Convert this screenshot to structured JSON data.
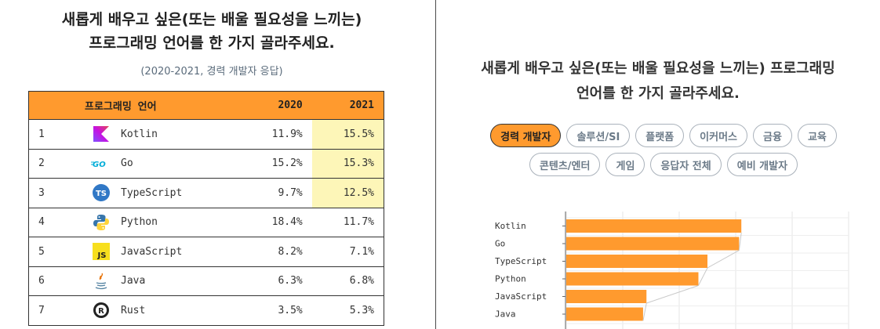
{
  "left_panel": {
    "title_line1": "새롭게 배우고 싶은(또는 배울 필요성을 느끼는)",
    "title_line2": "프로그래밍 언어를 한 가지 골라주세요.",
    "subtitle": "(2020-2021, 경력 개발자 응답)",
    "table": {
      "headers": {
        "rank": "",
        "language": "프로그래밍 언어",
        "y2020": "2020",
        "y2021": "2021"
      },
      "rows": [
        {
          "rank": "1",
          "icon": "kotlin-icon",
          "language": "Kotlin",
          "y2020": "11.9%",
          "y2021": "15.5%",
          "highlight": true
        },
        {
          "rank": "2",
          "icon": "go-icon",
          "language": "Go",
          "y2020": "15.2%",
          "y2021": "15.3%",
          "highlight": true
        },
        {
          "rank": "3",
          "icon": "typescript-icon",
          "language": "TypeScript",
          "y2020": "9.7%",
          "y2021": "12.5%",
          "highlight": true
        },
        {
          "rank": "4",
          "icon": "python-icon",
          "language": "Python",
          "y2020": "18.4%",
          "y2021": "11.7%",
          "highlight": false
        },
        {
          "rank": "5",
          "icon": "javascript-icon",
          "language": "JavaScript",
          "y2020": "8.2%",
          "y2021": "7.1%",
          "highlight": false
        },
        {
          "rank": "6",
          "icon": "java-icon",
          "language": "Java",
          "y2020": "6.3%",
          "y2021": "6.8%",
          "highlight": false
        },
        {
          "rank": "7",
          "icon": "rust-icon",
          "language": "Rust",
          "y2020": "3.5%",
          "y2021": "5.3%",
          "highlight": false
        }
      ]
    }
  },
  "right_panel": {
    "title_line1": "새롭게 배우고 싶은(또는 배울 필요성을 느끼는) 프로그래밍",
    "title_line2": "언어를 한 가지 골라주세요.",
    "filters": [
      {
        "label": "경력 개발자",
        "active": true
      },
      {
        "label": "솔루션/SI",
        "active": false
      },
      {
        "label": "플랫폼",
        "active": false
      },
      {
        "label": "이커머스",
        "active": false
      },
      {
        "label": "금융",
        "active": false
      },
      {
        "label": "교육",
        "active": false
      },
      {
        "label": "콘텐츠/엔터",
        "active": false
      },
      {
        "label": "게임",
        "active": false
      },
      {
        "label": "응답자 전체",
        "active": false
      },
      {
        "label": "예비 개발자",
        "active": false
      }
    ]
  },
  "chart_data": {
    "type": "bar",
    "orientation": "horizontal",
    "categories": [
      "Kotlin",
      "Go",
      "TypeScript",
      "Python",
      "JavaScript",
      "Java"
    ],
    "series": [
      {
        "values": [
          15.5,
          15.3,
          12.5,
          11.7,
          7.1,
          6.8
        ]
      }
    ],
    "xlim": [
      0,
      25
    ],
    "grid": true,
    "colors": {
      "bar": "#ff9a2e"
    }
  },
  "colors": {
    "accent": "#ff9a2e",
    "highlight": "#fdf6b8"
  }
}
